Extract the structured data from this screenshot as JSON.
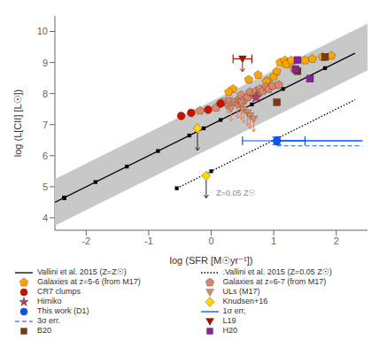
{
  "chart_data": {
    "type": "scatter",
    "xlabel": "log (SFR [M☉yr⁻¹])",
    "ylabel": "log (L[CII] [L☉])",
    "xlim": [
      -2.5,
      2.5
    ],
    "ylim": [
      3.6,
      10.5
    ],
    "xticks": [
      -2,
      -1,
      0,
      1,
      2
    ],
    "yticks": [
      4,
      5,
      6,
      7,
      8,
      9,
      10
    ],
    "grid": false,
    "legend": "bottom",
    "annotations": [
      {
        "text": "Z=0.05 Z☉",
        "x": 0.08,
        "y": 4.72,
        "color": "#888888"
      }
    ],
    "series": [
      {
        "type": "band",
        "color": "#c8c8c8",
        "x": [
          -2.5,
          2.5
        ],
        "lower": [
          3.75,
          8.75
        ],
        "upper": [
          5.25,
          10.25
        ]
      },
      {
        "name": "Vallini et al. 2015 (Z=Z☉)",
        "type": "line",
        "color": "#000000",
        "line_style": "solid",
        "x": [
          -2.5,
          2.3
        ],
        "values": [
          4.5,
          9.3
        ]
      },
      {
        "type": "scatter",
        "color": "#000000",
        "marker": "square",
        "x": [
          -2.35,
          -1.85,
          -1.35,
          -0.85,
          -0.35,
          0.15,
          0.65,
          1.15,
          -2.35,
          -0.12,
          1.82
        ],
        "values": [
          4.65,
          5.15,
          5.65,
          6.15,
          6.65,
          7.15,
          7.65,
          8.15,
          4.65,
          6.88,
          8.82
        ]
      },
      {
        "name": ".Vallini et al. 2015 (Z=0.05 Z☉)",
        "type": "line",
        "color": "#000000",
        "line_style": "dotted",
        "x": [
          -0.55,
          2.3
        ],
        "values": [
          4.95,
          7.8
        ]
      },
      {
        "type": "scatter",
        "color": "#000000",
        "marker": "square",
        "x": [
          -0.55,
          0.0,
          -2.35
        ],
        "values": [
          4.95,
          5.5,
          4.63
        ]
      },
      {
        "name": "Galaxies at z=5-6 (from M17)",
        "type": "scatter",
        "color": "#FFA500",
        "marker": "pentagon",
        "x": [
          0.35,
          0.6,
          0.75,
          0.9,
          1.0,
          1.05,
          1.1,
          1.18,
          1.2,
          1.28,
          1.32,
          1.5,
          1.62,
          1.78,
          1.92,
          0.28,
          0.88
        ],
        "values": [
          8.15,
          8.45,
          8.6,
          8.42,
          8.55,
          8.72,
          9.0,
          9.07,
          8.95,
          9.07,
          8.82,
          9.07,
          9.12,
          9.18,
          9.22,
          8.05,
          8.38
        ]
      },
      {
        "name": "Galaxies at z=6-7 (from M17)",
        "type": "scatter",
        "color": "#D9896A",
        "marker": "pentagon",
        "x": [
          -0.18,
          0.08,
          0.18,
          0.28,
          0.38,
          0.45,
          0.48,
          0.52,
          0.58,
          0.62,
          0.68,
          0.72,
          0.78,
          0.82,
          0.88,
          0.92,
          0.98,
          1.08
        ],
        "values": [
          7.45,
          7.55,
          7.72,
          7.62,
          7.72,
          7.82,
          7.95,
          7.78,
          7.88,
          8.05,
          7.95,
          8.08,
          8.15,
          8.08,
          8.22,
          8.15,
          8.25,
          8.28
        ]
      },
      {
        "name": "CR7 clumps",
        "type": "scatter",
        "color": "#CC1100",
        "marker": "circle",
        "x": [
          -0.32,
          -0.48,
          -0.05,
          0.15
        ],
        "values": [
          7.38,
          7.28,
          7.48,
          7.68
        ]
      },
      {
        "name": "ULs (M17)",
        "type": "scatter",
        "color": "#D9896A",
        "marker": "triangle_down_arrow",
        "x": [
          0.28,
          0.42,
          0.48,
          0.52,
          0.58,
          0.62,
          0.68,
          0.32,
          0.48
        ],
        "values": [
          7.78,
          7.62,
          7.58,
          7.48,
          7.38,
          7.28,
          7.18,
          7.52,
          7.72
        ]
      },
      {
        "name": "Himiko",
        "type": "scatter",
        "color": "#b04060",
        "marker": "star",
        "x": [
          0.72
        ],
        "values": [
          7.88
        ]
      },
      {
        "name": "Knudsen+16",
        "type": "scatter",
        "color": "#FFD700",
        "marker": "diamond_arrow",
        "x": [
          -0.22,
          -0.08
        ],
        "values": [
          6.88,
          5.35
        ]
      },
      {
        "name": "This work (D1)",
        "type": "scatter",
        "color": "#0055FF",
        "marker": "circle",
        "x": [
          1.05
        ],
        "values": [
          6.48
        ],
        "xerr_minus": [
          0.55
        ],
        "xerr_plus": [
          0.45
        ],
        "yerr": [
          0.12
        ]
      },
      {
        "name": "1σ err,",
        "type": "line",
        "color": "#0055FF",
        "line_style": "solid",
        "x": [
          1.05,
          2.42
        ],
        "values": [
          6.48,
          6.48
        ]
      },
      {
        "name": "3σ err.",
        "type": "line",
        "color": "#4488FF",
        "line_style": "dashed",
        "x": [
          1.05,
          2.42
        ],
        "values": [
          6.32,
          6.32
        ]
      },
      {
        "name": "L19",
        "type": "scatter",
        "color": "#AA1100",
        "marker": "triangle_down_arrow",
        "x": [
          0.5
        ],
        "values": [
          9.12
        ],
        "xerr": [
          0.15
        ]
      },
      {
        "name": "B20",
        "type": "scatter",
        "color": "#7B3B10",
        "marker": "square",
        "x": [
          1.05,
          1.82,
          1.38
        ],
        "values": [
          7.72,
          9.18,
          8.72
        ]
      },
      {
        "name": "H20",
        "type": "scatter",
        "color": "#882299",
        "marker": "square",
        "x": [
          1.35,
          1.58,
          1.38
        ],
        "values": [
          8.78,
          8.48,
          9.08
        ]
      }
    ]
  }
}
